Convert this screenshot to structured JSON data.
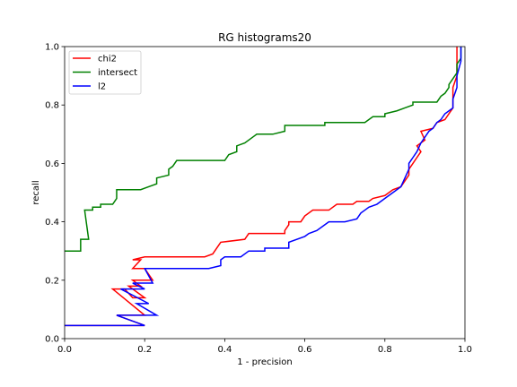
{
  "chart_data": {
    "type": "line",
    "title": "RG histograms20",
    "xlabel": "1 - precision",
    "ylabel": "recall",
    "xlim": [
      0,
      1
    ],
    "ylim": [
      0,
      1
    ],
    "xticks": [
      "0.0",
      "0.2",
      "0.4",
      "0.6",
      "0.8",
      "1.0"
    ],
    "yticks": [
      "0.0",
      "0.2",
      "0.4",
      "0.6",
      "0.8",
      "1.0"
    ],
    "grid": false,
    "legend_position": "top-left",
    "series": [
      {
        "name": "chi2",
        "color": "#ff0000",
        "points": [
          [
            0.0,
            0.045
          ],
          [
            0.2,
            0.045
          ],
          [
            0.13,
            0.08
          ],
          [
            0.2,
            0.08
          ],
          [
            0.12,
            0.17
          ],
          [
            0.15,
            0.17
          ],
          [
            0.17,
            0.14
          ],
          [
            0.2,
            0.14
          ],
          [
            0.16,
            0.18
          ],
          [
            0.19,
            0.18
          ],
          [
            0.17,
            0.2
          ],
          [
            0.22,
            0.2
          ],
          [
            0.2,
            0.24
          ],
          [
            0.17,
            0.24
          ],
          [
            0.19,
            0.27
          ],
          [
            0.17,
            0.27
          ],
          [
            0.2,
            0.28
          ],
          [
            0.35,
            0.28
          ],
          [
            0.37,
            0.29
          ],
          [
            0.38,
            0.31
          ],
          [
            0.39,
            0.33
          ],
          [
            0.45,
            0.34
          ],
          [
            0.46,
            0.36
          ],
          [
            0.55,
            0.36
          ],
          [
            0.55,
            0.37
          ],
          [
            0.56,
            0.39
          ],
          [
            0.56,
            0.4
          ],
          [
            0.59,
            0.4
          ],
          [
            0.6,
            0.42
          ],
          [
            0.62,
            0.44
          ],
          [
            0.66,
            0.44
          ],
          [
            0.68,
            0.46
          ],
          [
            0.72,
            0.46
          ],
          [
            0.73,
            0.47
          ],
          [
            0.76,
            0.47
          ],
          [
            0.77,
            0.48
          ],
          [
            0.8,
            0.49
          ],
          [
            0.82,
            0.51
          ],
          [
            0.84,
            0.52
          ],
          [
            0.85,
            0.54
          ],
          [
            0.86,
            0.56
          ],
          [
            0.86,
            0.58
          ],
          [
            0.87,
            0.6
          ],
          [
            0.88,
            0.62
          ],
          [
            0.89,
            0.64
          ],
          [
            0.88,
            0.66
          ],
          [
            0.89,
            0.67
          ],
          [
            0.9,
            0.68
          ],
          [
            0.89,
            0.71
          ],
          [
            0.92,
            0.72
          ],
          [
            0.93,
            0.74
          ],
          [
            0.95,
            0.75
          ],
          [
            0.96,
            0.77
          ],
          [
            0.97,
            0.79
          ],
          [
            0.97,
            0.82
          ],
          [
            0.97,
            0.86
          ],
          [
            0.98,
            0.9
          ],
          [
            0.98,
            1.0
          ]
        ]
      },
      {
        "name": "intersect",
        "color": "#008000",
        "points": [
          [
            0.0,
            0.3
          ],
          [
            0.04,
            0.3
          ],
          [
            0.04,
            0.34
          ],
          [
            0.06,
            0.34
          ],
          [
            0.05,
            0.44
          ],
          [
            0.07,
            0.44
          ],
          [
            0.07,
            0.45
          ],
          [
            0.09,
            0.45
          ],
          [
            0.09,
            0.46
          ],
          [
            0.12,
            0.46
          ],
          [
            0.13,
            0.48
          ],
          [
            0.13,
            0.51
          ],
          [
            0.19,
            0.51
          ],
          [
            0.21,
            0.52
          ],
          [
            0.23,
            0.53
          ],
          [
            0.23,
            0.55
          ],
          [
            0.26,
            0.56
          ],
          [
            0.26,
            0.58
          ],
          [
            0.27,
            0.59
          ],
          [
            0.28,
            0.61
          ],
          [
            0.4,
            0.61
          ],
          [
            0.41,
            0.63
          ],
          [
            0.43,
            0.64
          ],
          [
            0.43,
            0.66
          ],
          [
            0.45,
            0.67
          ],
          [
            0.47,
            0.69
          ],
          [
            0.48,
            0.7
          ],
          [
            0.52,
            0.7
          ],
          [
            0.55,
            0.71
          ],
          [
            0.55,
            0.73
          ],
          [
            0.65,
            0.73
          ],
          [
            0.65,
            0.74
          ],
          [
            0.75,
            0.74
          ],
          [
            0.77,
            0.76
          ],
          [
            0.8,
            0.76
          ],
          [
            0.8,
            0.77
          ],
          [
            0.83,
            0.78
          ],
          [
            0.85,
            0.79
          ],
          [
            0.87,
            0.8
          ],
          [
            0.87,
            0.81
          ],
          [
            0.93,
            0.81
          ],
          [
            0.94,
            0.83
          ],
          [
            0.95,
            0.84
          ],
          [
            0.96,
            0.86
          ],
          [
            0.96,
            0.87
          ],
          [
            0.97,
            0.89
          ],
          [
            0.98,
            0.91
          ],
          [
            0.98,
            0.94
          ],
          [
            0.99,
            0.96
          ],
          [
            0.99,
            1.0
          ]
        ]
      },
      {
        "name": "l2",
        "color": "#0000ff",
        "points": [
          [
            0.0,
            0.045
          ],
          [
            0.2,
            0.045
          ],
          [
            0.13,
            0.08
          ],
          [
            0.23,
            0.08
          ],
          [
            0.18,
            0.12
          ],
          [
            0.21,
            0.12
          ],
          [
            0.14,
            0.17
          ],
          [
            0.2,
            0.17
          ],
          [
            0.17,
            0.19
          ],
          [
            0.22,
            0.19
          ],
          [
            0.2,
            0.24
          ],
          [
            0.36,
            0.24
          ],
          [
            0.39,
            0.25
          ],
          [
            0.39,
            0.27
          ],
          [
            0.4,
            0.28
          ],
          [
            0.44,
            0.28
          ],
          [
            0.46,
            0.3
          ],
          [
            0.5,
            0.3
          ],
          [
            0.5,
            0.31
          ],
          [
            0.56,
            0.31
          ],
          [
            0.56,
            0.33
          ],
          [
            0.6,
            0.35
          ],
          [
            0.61,
            0.36
          ],
          [
            0.63,
            0.37
          ],
          [
            0.65,
            0.39
          ],
          [
            0.66,
            0.4
          ],
          [
            0.7,
            0.4
          ],
          [
            0.73,
            0.41
          ],
          [
            0.74,
            0.43
          ],
          [
            0.75,
            0.44
          ],
          [
            0.76,
            0.45
          ],
          [
            0.78,
            0.46
          ],
          [
            0.8,
            0.48
          ],
          [
            0.82,
            0.5
          ],
          [
            0.84,
            0.52
          ],
          [
            0.85,
            0.55
          ],
          [
            0.86,
            0.58
          ],
          [
            0.86,
            0.6
          ],
          [
            0.87,
            0.62
          ],
          [
            0.88,
            0.64
          ],
          [
            0.89,
            0.67
          ],
          [
            0.91,
            0.71
          ],
          [
            0.92,
            0.72
          ],
          [
            0.93,
            0.74
          ],
          [
            0.94,
            0.75
          ],
          [
            0.95,
            0.77
          ],
          [
            0.97,
            0.79
          ],
          [
            0.97,
            0.82
          ],
          [
            0.98,
            0.86
          ],
          [
            0.98,
            0.9
          ],
          [
            0.99,
            0.95
          ],
          [
            0.99,
            1.0
          ]
        ]
      }
    ]
  }
}
